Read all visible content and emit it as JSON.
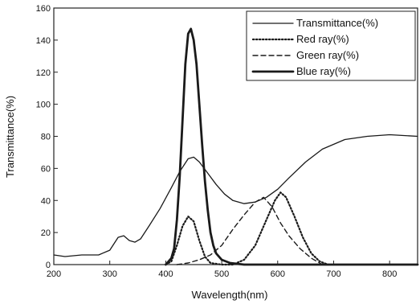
{
  "chart_data": {
    "type": "line",
    "xlabel": "Wavelength(nm)",
    "ylabel": "Transmittance(%)",
    "xlim": [
      200,
      850
    ],
    "ylim": [
      0,
      160
    ],
    "x_ticks": [
      200,
      300,
      400,
      500,
      600,
      700,
      800
    ],
    "y_ticks": [
      0,
      20,
      40,
      60,
      80,
      100,
      120,
      140,
      160
    ],
    "grid": true,
    "legend_position": "top-right",
    "series": [
      {
        "name": "Transmittance(%)",
        "style": "thin-solid",
        "points": [
          [
            200,
            6
          ],
          [
            220,
            5
          ],
          [
            250,
            6
          ],
          [
            280,
            6
          ],
          [
            300,
            9
          ],
          [
            315,
            17
          ],
          [
            325,
            18
          ],
          [
            335,
            15
          ],
          [
            345,
            14
          ],
          [
            355,
            16
          ],
          [
            370,
            24
          ],
          [
            390,
            35
          ],
          [
            410,
            48
          ],
          [
            425,
            58
          ],
          [
            440,
            66
          ],
          [
            450,
            67
          ],
          [
            460,
            64
          ],
          [
            475,
            57
          ],
          [
            490,
            50
          ],
          [
            505,
            44
          ],
          [
            520,
            40
          ],
          [
            540,
            38
          ],
          [
            560,
            39
          ],
          [
            580,
            42
          ],
          [
            600,
            47
          ],
          [
            620,
            54
          ],
          [
            650,
            64
          ],
          [
            680,
            72
          ],
          [
            720,
            78
          ],
          [
            760,
            80
          ],
          [
            800,
            81
          ],
          [
            850,
            80
          ]
        ]
      },
      {
        "name": "Red ray(%)",
        "style": "dotted",
        "points": [
          [
            400,
            0
          ],
          [
            410,
            2
          ],
          [
            420,
            12
          ],
          [
            430,
            24
          ],
          [
            440,
            30
          ],
          [
            450,
            27
          ],
          [
            460,
            15
          ],
          [
            470,
            5
          ],
          [
            480,
            1
          ],
          [
            500,
            0
          ],
          [
            520,
            0
          ],
          [
            540,
            3
          ],
          [
            560,
            12
          ],
          [
            580,
            28
          ],
          [
            595,
            40
          ],
          [
            605,
            45
          ],
          [
            615,
            42
          ],
          [
            630,
            30
          ],
          [
            645,
            17
          ],
          [
            660,
            7
          ],
          [
            675,
            2
          ],
          [
            690,
            0
          ]
        ]
      },
      {
        "name": "Green ray(%)",
        "style": "dashed",
        "points": [
          [
            420,
            0
          ],
          [
            440,
            1
          ],
          [
            460,
            3
          ],
          [
            480,
            6
          ],
          [
            500,
            12
          ],
          [
            520,
            22
          ],
          [
            540,
            31
          ],
          [
            560,
            39
          ],
          [
            575,
            42
          ],
          [
            590,
            36
          ],
          [
            605,
            26
          ],
          [
            620,
            18
          ],
          [
            640,
            10
          ],
          [
            660,
            4
          ],
          [
            680,
            0
          ]
        ]
      },
      {
        "name": "Blue ray(%)",
        "style": "thick-solid",
        "points": [
          [
            400,
            0
          ],
          [
            410,
            4
          ],
          [
            415,
            10
          ],
          [
            420,
            28
          ],
          [
            425,
            55
          ],
          [
            430,
            90
          ],
          [
            435,
            125
          ],
          [
            440,
            144
          ],
          [
            445,
            147
          ],
          [
            450,
            140
          ],
          [
            455,
            125
          ],
          [
            460,
            100
          ],
          [
            465,
            75
          ],
          [
            470,
            52
          ],
          [
            475,
            34
          ],
          [
            480,
            20
          ],
          [
            485,
            12
          ],
          [
            490,
            7
          ],
          [
            500,
            3
          ],
          [
            515,
            1
          ],
          [
            540,
            0
          ],
          [
            850,
            0
          ]
        ]
      }
    ]
  }
}
